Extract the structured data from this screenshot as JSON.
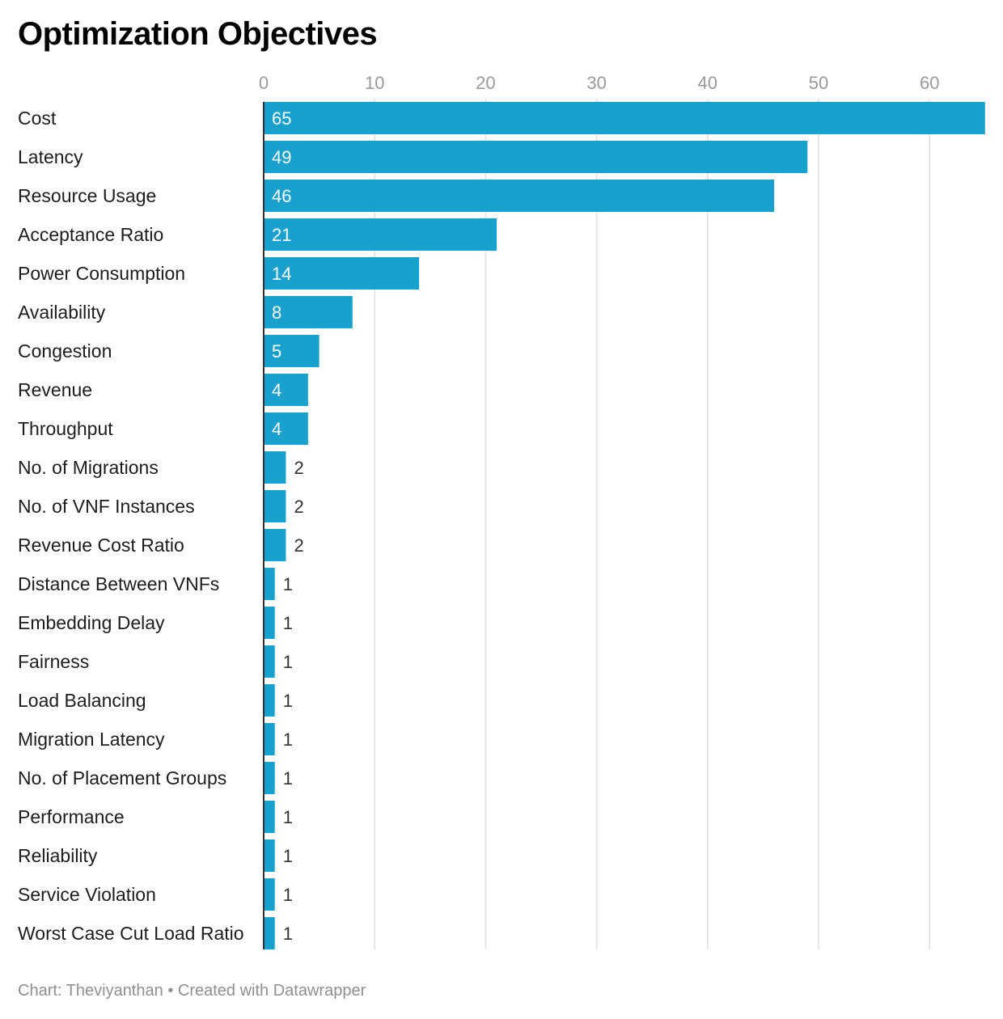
{
  "title": "Optimization Objectives",
  "footer": {
    "source": "Chart: Theviyanthan",
    "separator": "•",
    "credit": "Created with Datawrapper"
  },
  "colors": {
    "bar": "#18a1cd",
    "grid": "#e0e0e0",
    "axis": "#333333",
    "label_inside": "#ffffff",
    "label_outside": "#333333"
  },
  "chart_data": {
    "type": "bar",
    "orientation": "horizontal",
    "title": "Optimization Objectives",
    "xlim": [
      0,
      65
    ],
    "ticks": [
      0,
      10,
      20,
      30,
      40,
      50,
      60
    ],
    "tick_labels": [
      "0",
      "10",
      "20",
      "30",
      "40",
      "50",
      "60"
    ],
    "tick_position": "top",
    "grid": true,
    "categories": [
      "Cost",
      "Latency",
      "Resource Usage",
      "Acceptance Ratio",
      "Power Consumption",
      "Availability",
      "Congestion",
      "Revenue",
      "Throughput",
      "No. of Migrations",
      "No. of VNF Instances",
      "Revenue Cost Ratio",
      "Distance Between VNFs",
      "Embedding Delay",
      "Fairness",
      "Load Balancing",
      "Migration Latency",
      "No. of Placement Groups",
      "Performance",
      "Reliability",
      "Service Violation",
      "Worst Case Cut Load Ratio"
    ],
    "values": [
      65,
      49,
      46,
      21,
      14,
      8,
      5,
      4,
      4,
      2,
      2,
      2,
      1,
      1,
      1,
      1,
      1,
      1,
      1,
      1,
      1,
      1
    ]
  }
}
